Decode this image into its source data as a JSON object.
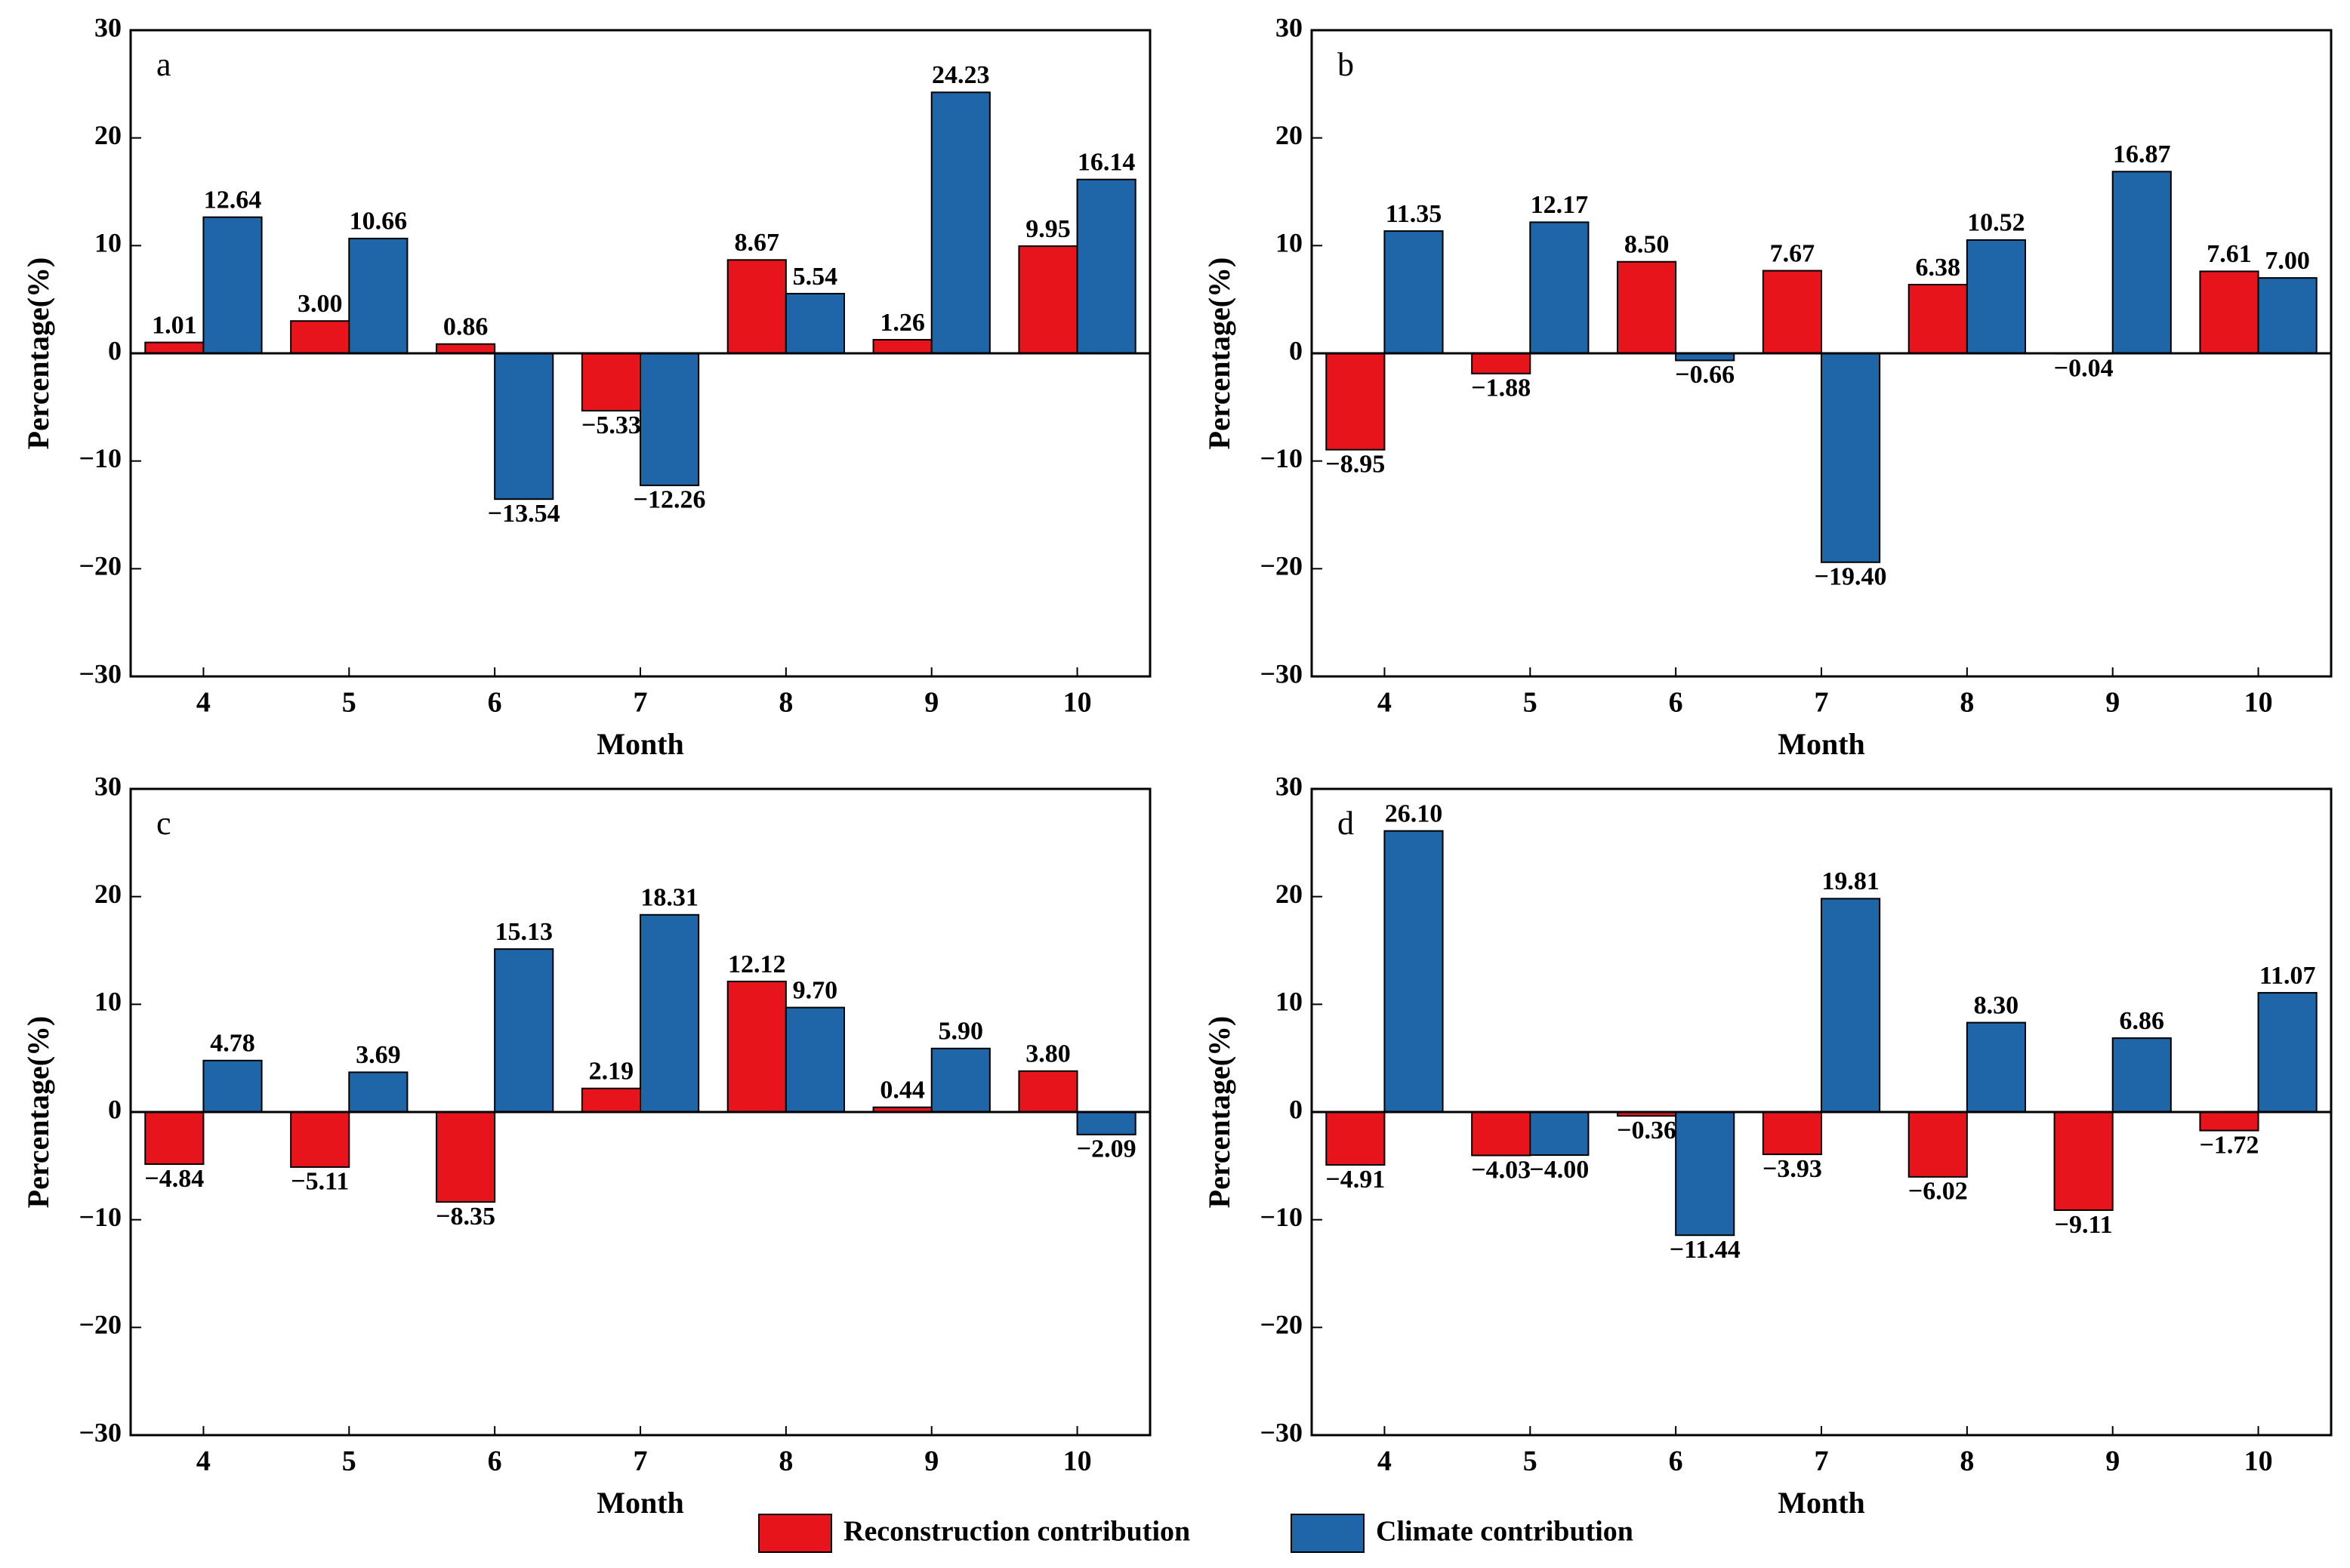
{
  "chart_data": [
    {
      "type": "bar",
      "label": "a",
      "x_label": "Month",
      "y_label": "Percentage(%)",
      "categories": [
        "4",
        "5",
        "6",
        "7",
        "8",
        "9",
        "10"
      ],
      "ylim": [
        -30,
        30
      ],
      "yticks": [
        {
          "value": -30,
          "label": "−30"
        },
        {
          "value": -20,
          "label": "−20"
        },
        {
          "value": -10,
          "label": "−10"
        },
        0,
        10,
        20,
        30
      ],
      "series": [
        {
          "name": "Reconstruction contribution",
          "color": "#e8141b",
          "values": [
            1.01,
            3.0,
            0.86,
            -5.33,
            8.67,
            1.26,
            9.95
          ],
          "value_labels": [
            "1.01",
            "3.00",
            "0.86",
            "−5.33",
            "8.67",
            "1.26",
            "9.95"
          ]
        },
        {
          "name": "Climate contribution",
          "color": "#1f66a8",
          "values": [
            12.64,
            10.66,
            -13.54,
            -12.26,
            5.54,
            24.23,
            16.14
          ],
          "value_labels": [
            "12.64",
            "10.66",
            "−13.54",
            "−12.26",
            "5.54",
            "24.23",
            "16.14"
          ]
        }
      ]
    },
    {
      "type": "bar",
      "label": "b",
      "x_label": "Month",
      "y_label": "Percentage(%)",
      "categories": [
        "4",
        "5",
        "6",
        "7",
        "8",
        "9",
        "10"
      ],
      "ylim": [
        -30,
        30
      ],
      "yticks": [
        {
          "value": -30,
          "label": "−30"
        },
        {
          "value": -20,
          "label": "−20"
        },
        {
          "value": -10,
          "label": "−10"
        },
        0,
        10,
        20,
        30
      ],
      "series": [
        {
          "name": "Reconstruction contribution",
          "color": "#e8141b",
          "values": [
            -8.95,
            -1.88,
            8.5,
            7.67,
            6.38,
            -0.04,
            7.61
          ],
          "value_labels": [
            "−8.95",
            "−1.88",
            "8.50",
            "7.67",
            "6.38",
            "−0.04",
            "7.61"
          ]
        },
        {
          "name": "Climate contribution",
          "color": "#1f66a8",
          "values": [
            11.35,
            12.17,
            -0.66,
            -19.4,
            10.52,
            16.87,
            7.0
          ],
          "value_labels": [
            "11.35",
            "12.17",
            "−0.66",
            "−19.40",
            "10.52",
            "16.87",
            "7.00"
          ]
        }
      ]
    },
    {
      "type": "bar",
      "label": "c",
      "x_label": "Month",
      "y_label": "Percentage(%)",
      "categories": [
        "4",
        "5",
        "6",
        "7",
        "8",
        "9",
        "10"
      ],
      "ylim": [
        -30,
        30
      ],
      "yticks": [
        {
          "value": -30,
          "label": "−30"
        },
        {
          "value": -20,
          "label": "−20"
        },
        {
          "value": -10,
          "label": "−10"
        },
        0,
        10,
        20,
        30
      ],
      "series": [
        {
          "name": "Reconstruction contribution",
          "color": "#e8141b",
          "values": [
            -4.84,
            -5.11,
            -8.35,
            2.19,
            12.12,
            0.44,
            3.8
          ],
          "value_labels": [
            "−4.84",
            "−5.11",
            "−8.35",
            "2.19",
            "12.12",
            "0.44",
            "3.80"
          ]
        },
        {
          "name": "Climate contribution",
          "color": "#1f66a8",
          "values": [
            4.78,
            3.69,
            15.13,
            18.31,
            9.7,
            5.9,
            -2.09
          ],
          "value_labels": [
            "4.78",
            "3.69",
            "15.13",
            "18.31",
            "9.70",
            "5.90",
            "−2.09"
          ]
        }
      ]
    },
    {
      "type": "bar",
      "label": "d",
      "x_label": "Month",
      "y_label": "Percentage(%)",
      "categories": [
        "4",
        "5",
        "6",
        "7",
        "8",
        "9",
        "10"
      ],
      "ylim": [
        -30,
        30
      ],
      "yticks": [
        {
          "value": -30,
          "label": "−30"
        },
        {
          "value": -20,
          "label": "−20"
        },
        {
          "value": -10,
          "label": "−10"
        },
        0,
        10,
        20,
        30
      ],
      "series": [
        {
          "name": "Reconstruction contribution",
          "color": "#e8141b",
          "values": [
            -4.91,
            -4.03,
            -0.36,
            -3.93,
            -6.02,
            -9.11,
            -1.72
          ],
          "value_labels": [
            "−4.91",
            "−4.03",
            "−0.36",
            "−3.93",
            "−6.02",
            "−9.11",
            "−1.72"
          ]
        },
        {
          "name": "Climate contribution",
          "color": "#1f66a8",
          "values": [
            26.1,
            -4.0,
            -11.44,
            19.81,
            8.3,
            6.86,
            11.07
          ],
          "value_labels": [
            "26.10",
            "−4.00",
            "−11.44",
            "19.81",
            "8.30",
            "6.86",
            "11.07"
          ]
        }
      ]
    }
  ]
}
